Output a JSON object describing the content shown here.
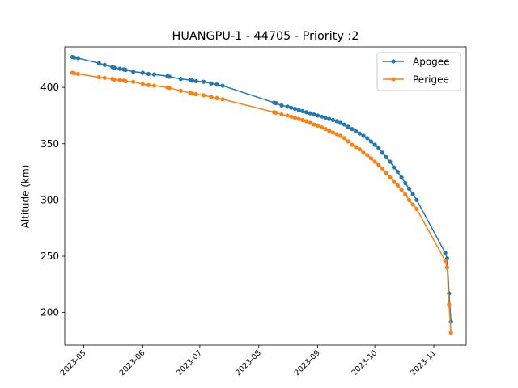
{
  "chart_data": {
    "type": "line",
    "title": "HUANGPU-1 - 44705 - Priority :2",
    "xlabel": "",
    "ylabel": "Altitude (km)",
    "xlim": [
      "2023-04-21",
      "2023-11-18"
    ],
    "ylim": [
      171,
      436
    ],
    "x_ticks": [
      "2023-05",
      "2023-06",
      "2023-07",
      "2023-08",
      "2023-09",
      "2023-10",
      "2023-11"
    ],
    "y_ticks": [
      200,
      250,
      300,
      350,
      400
    ],
    "grid": false,
    "legend_position": "top-right",
    "series": [
      {
        "name": "Apogee",
        "color": "#1f77b4",
        "points": [
          [
            "2023-04-25",
            427
          ],
          [
            "2023-04-26",
            426.5
          ],
          [
            "2023-04-28",
            426
          ],
          [
            "2023-05-09",
            421.5
          ],
          [
            "2023-05-12",
            420
          ],
          [
            "2023-05-16",
            418
          ],
          [
            "2023-05-17",
            417.5
          ],
          [
            "2023-05-20",
            416.5
          ],
          [
            "2023-05-22",
            416
          ],
          [
            "2023-05-23",
            415.5
          ],
          [
            "2023-05-27",
            414
          ],
          [
            "2023-06-01",
            413
          ],
          [
            "2023-06-04",
            412
          ],
          [
            "2023-06-07",
            411.5
          ],
          [
            "2023-06-14",
            410
          ],
          [
            "2023-06-15",
            409.5
          ],
          [
            "2023-06-21",
            407.5
          ],
          [
            "2023-06-26",
            406.5
          ],
          [
            "2023-06-27",
            406
          ],
          [
            "2023-06-29",
            405.5
          ],
          [
            "2023-07-03",
            405
          ],
          [
            "2023-07-07",
            403.5
          ],
          [
            "2023-07-10",
            402.5
          ],
          [
            "2023-07-13",
            401.5
          ],
          [
            "2023-08-09",
            386.5
          ],
          [
            "2023-08-10",
            386
          ],
          [
            "2023-08-13",
            384
          ],
          [
            "2023-08-16",
            383
          ],
          [
            "2023-08-18",
            382
          ],
          [
            "2023-08-20",
            381
          ],
          [
            "2023-08-22",
            380
          ],
          [
            "2023-08-24",
            379
          ],
          [
            "2023-08-26",
            378
          ],
          [
            "2023-08-28",
            377
          ],
          [
            "2023-08-30",
            376
          ],
          [
            "2023-09-01",
            375
          ],
          [
            "2023-09-03",
            374
          ],
          [
            "2023-09-05",
            373
          ],
          [
            "2023-09-07",
            372
          ],
          [
            "2023-09-09",
            371
          ],
          [
            "2023-09-11",
            370
          ],
          [
            "2023-09-13",
            368.5
          ],
          [
            "2023-09-15",
            367
          ],
          [
            "2023-09-17",
            365
          ],
          [
            "2023-09-19",
            363
          ],
          [
            "2023-09-21",
            361
          ],
          [
            "2023-09-23",
            359
          ],
          [
            "2023-09-25",
            357
          ],
          [
            "2023-09-27",
            355
          ],
          [
            "2023-09-29",
            352
          ],
          [
            "2023-10-01",
            349
          ],
          [
            "2023-10-03",
            346
          ],
          [
            "2023-10-05",
            342
          ],
          [
            "2023-10-07",
            338
          ],
          [
            "2023-10-09",
            334
          ],
          [
            "2023-10-11",
            329
          ],
          [
            "2023-10-13",
            325
          ],
          [
            "2023-10-15",
            320
          ],
          [
            "2023-10-17",
            315
          ],
          [
            "2023-10-19",
            310
          ],
          [
            "2023-10-21",
            305
          ],
          [
            "2023-10-23",
            300
          ],
          [
            "2023-11-07",
            253
          ],
          [
            "2023-11-08",
            248
          ],
          [
            "2023-11-09",
            217
          ],
          [
            "2023-11-10",
            192
          ]
        ]
      },
      {
        "name": "Perigee",
        "color": "#ff7f0e",
        "points": [
          [
            "2023-04-25",
            413
          ],
          [
            "2023-04-26",
            412.5
          ],
          [
            "2023-04-28",
            412
          ],
          [
            "2023-05-09",
            409
          ],
          [
            "2023-05-12",
            408.5
          ],
          [
            "2023-05-16",
            407.5
          ],
          [
            "2023-05-17",
            407
          ],
          [
            "2023-05-20",
            406.5
          ],
          [
            "2023-05-22",
            406
          ],
          [
            "2023-05-23",
            405.5
          ],
          [
            "2023-05-27",
            405
          ],
          [
            "2023-06-01",
            403
          ],
          [
            "2023-06-04",
            402
          ],
          [
            "2023-06-07",
            401.5
          ],
          [
            "2023-06-14",
            400
          ],
          [
            "2023-06-15",
            399.5
          ],
          [
            "2023-06-21",
            397
          ],
          [
            "2023-06-26",
            395
          ],
          [
            "2023-06-27",
            394.5
          ],
          [
            "2023-06-29",
            394
          ],
          [
            "2023-07-03",
            393
          ],
          [
            "2023-07-07",
            391.5
          ],
          [
            "2023-07-10",
            390.5
          ],
          [
            "2023-07-13",
            389.5
          ],
          [
            "2023-08-09",
            378
          ],
          [
            "2023-08-10",
            377.5
          ],
          [
            "2023-08-13",
            376
          ],
          [
            "2023-08-16",
            375
          ],
          [
            "2023-08-18",
            374
          ],
          [
            "2023-08-20",
            373
          ],
          [
            "2023-08-22",
            372
          ],
          [
            "2023-08-24",
            371
          ],
          [
            "2023-08-26",
            370
          ],
          [
            "2023-08-28",
            368.5
          ],
          [
            "2023-08-30",
            367
          ],
          [
            "2023-09-01",
            366
          ],
          [
            "2023-09-03",
            364.5
          ],
          [
            "2023-09-05",
            363
          ],
          [
            "2023-09-07",
            361.5
          ],
          [
            "2023-09-09",
            360
          ],
          [
            "2023-09-11",
            358.5
          ],
          [
            "2023-09-13",
            357
          ],
          [
            "2023-09-15",
            355
          ],
          [
            "2023-09-17",
            352
          ],
          [
            "2023-09-19",
            349
          ],
          [
            "2023-09-21",
            347
          ],
          [
            "2023-09-23",
            345
          ],
          [
            "2023-09-25",
            342
          ],
          [
            "2023-09-27",
            340
          ],
          [
            "2023-09-29",
            337
          ],
          [
            "2023-10-01",
            334
          ],
          [
            "2023-10-03",
            331
          ],
          [
            "2023-10-05",
            328
          ],
          [
            "2023-10-07",
            324
          ],
          [
            "2023-10-09",
            320
          ],
          [
            "2023-10-11",
            316
          ],
          [
            "2023-10-13",
            313
          ],
          [
            "2023-10-15",
            309
          ],
          [
            "2023-10-17",
            305
          ],
          [
            "2023-10-19",
            300
          ],
          [
            "2023-10-21",
            296
          ],
          [
            "2023-10-23",
            292
          ],
          [
            "2023-11-07",
            246
          ],
          [
            "2023-11-08",
            240
          ],
          [
            "2023-11-09",
            207
          ],
          [
            "2023-11-10",
            182
          ]
        ]
      }
    ]
  }
}
